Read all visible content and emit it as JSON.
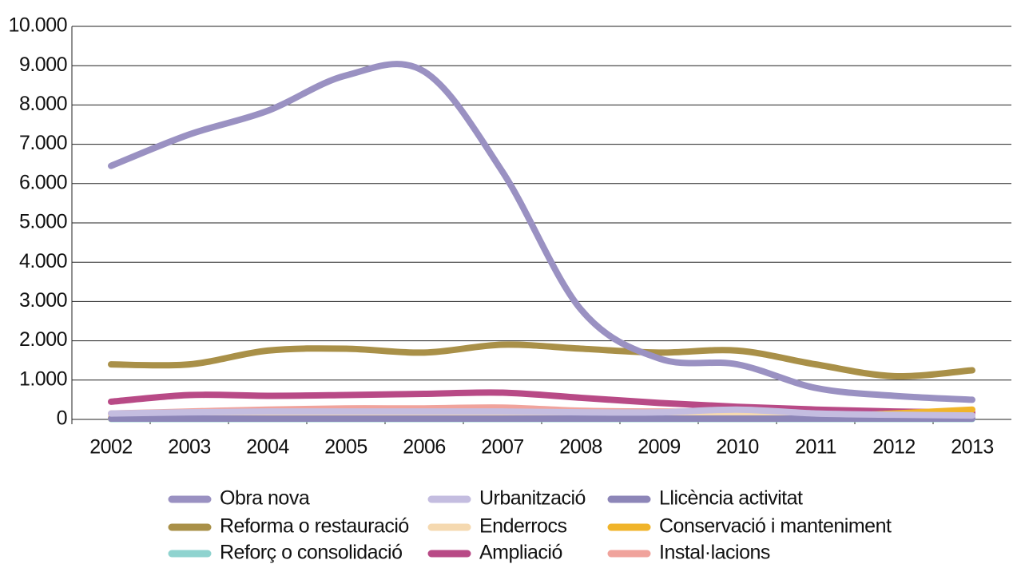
{
  "chart_data": {
    "type": "line",
    "categories": [
      "2002",
      "2003",
      "2004",
      "2005",
      "2006",
      "2007",
      "2008",
      "2009",
      "2010",
      "2011",
      "2012",
      "2013"
    ],
    "series": [
      {
        "name": "Obra nova",
        "color": "#9a91c2",
        "values": [
          6450,
          7250,
          7850,
          8750,
          8850,
          6300,
          2800,
          1550,
          1400,
          800,
          600,
          500
        ]
      },
      {
        "name": "Urbanització",
        "color": "#c4bde0",
        "values": [
          150,
          180,
          200,
          200,
          200,
          200,
          180,
          180,
          250,
          150,
          120,
          100
        ]
      },
      {
        "name": "Llicència activitat",
        "color": "#8d86b8",
        "values": [
          20,
          20,
          20,
          20,
          20,
          20,
          20,
          20,
          20,
          20,
          20,
          20
        ]
      },
      {
        "name": "Reforma o restauració",
        "color": "#a99048",
        "values": [
          1400,
          1400,
          1750,
          1800,
          1700,
          1900,
          1800,
          1700,
          1750,
          1400,
          1100,
          1250
        ]
      },
      {
        "name": "Enderrocs",
        "color": "#f5d9b0",
        "values": [
          80,
          100,
          120,
          130,
          130,
          140,
          120,
          100,
          100,
          100,
          90,
          80
        ]
      },
      {
        "name": "Conservació i manteniment",
        "color": "#f0b42a",
        "values": [
          20,
          30,
          30,
          30,
          30,
          40,
          30,
          30,
          30,
          60,
          150,
          250
        ]
      },
      {
        "name": "Reforç o consolidació",
        "color": "#8fd3cf",
        "values": [
          10,
          10,
          10,
          10,
          10,
          10,
          10,
          10,
          10,
          10,
          10,
          10
        ]
      },
      {
        "name": "Ampliació",
        "color": "#b84a86",
        "values": [
          450,
          620,
          600,
          620,
          650,
          680,
          550,
          420,
          320,
          250,
          200,
          180
        ]
      },
      {
        "name": "Instal·lacions",
        "color": "#f0a39c",
        "values": [
          150,
          200,
          250,
          280,
          280,
          300,
          220,
          200,
          200,
          180,
          150,
          130
        ]
      }
    ],
    "ylim": [
      0,
      10000
    ],
    "yticks": [
      0,
      {
        "value": 1000,
        "label": "1.000"
      },
      {
        "value": 2000,
        "label": "2.000"
      },
      {
        "value": 3000,
        "label": "3.000"
      },
      {
        "value": 4000,
        "label": "4.000"
      },
      {
        "value": 5000,
        "label": "5.000"
      },
      {
        "value": 6000,
        "label": "6.000"
      },
      {
        "value": 7000,
        "label": "7.000"
      },
      {
        "value": 8000,
        "label": "8.000"
      },
      {
        "value": 9000,
        "label": "9.000"
      },
      {
        "value": 10000,
        "label": "10.000"
      }
    ],
    "grid": true
  }
}
